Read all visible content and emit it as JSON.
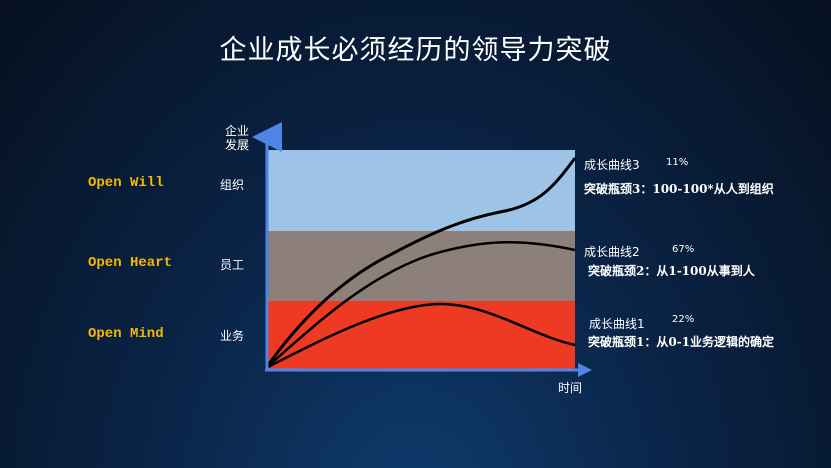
{
  "title": "企业成长必须经历的领导力突破",
  "axis": {
    "y_label_line1": "企业",
    "y_label_line2": "发展",
    "x_label": "时间"
  },
  "levels": [
    {
      "open_label": "Open Will",
      "level_label": "组织",
      "band_color": "#9dc3e6"
    },
    {
      "open_label": "Open Heart",
      "level_label": "员工",
      "band_color": "#8d7f7a"
    },
    {
      "open_label": "Open Mind",
      "level_label": "业务",
      "band_color": "#ee3a22"
    }
  ],
  "curves": [
    {
      "name": "成长曲线3",
      "percent": "11%",
      "breakthrough": "突破瓶颈3：100-100*从人到组织"
    },
    {
      "name": "成长曲线2",
      "percent": "67%",
      "breakthrough": "突破瓶颈2：从1-100从事到人"
    },
    {
      "name": "成长曲线1",
      "percent": "22%",
      "breakthrough": "突破瓶颈1：从0-1业务逻辑的确定"
    }
  ],
  "colors": {
    "axis": "#4f86e6",
    "label_accent": "#f5b800"
  }
}
